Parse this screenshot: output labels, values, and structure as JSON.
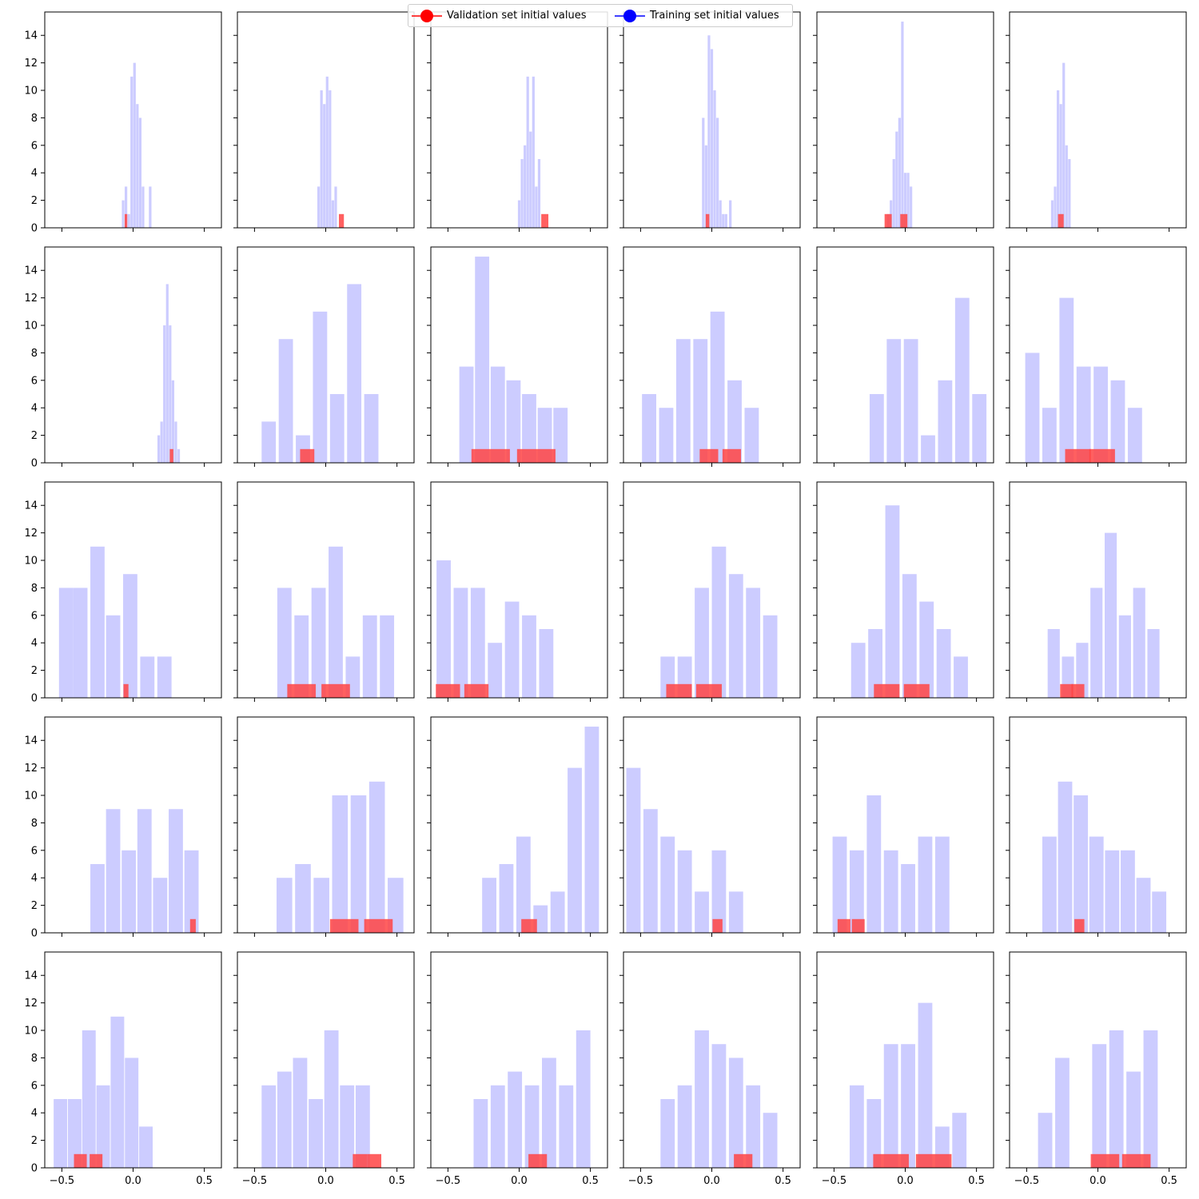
{
  "legend": {
    "entries": [
      {
        "label": "Validation set initial values",
        "color": "#ff0000"
      },
      {
        "label": "Training set initial values",
        "color": "#0000ff"
      }
    ]
  },
  "colors": {
    "training": "#ccccff",
    "validation": "#ff4444"
  },
  "chart_data": {
    "type": "bar",
    "layout_grid": [
      5,
      6
    ],
    "xlim": [
      -0.62,
      0.62
    ],
    "ylim": [
      0,
      15.7
    ],
    "xticks": [
      -0.5,
      0.0,
      0.5
    ],
    "xtick_labels": [
      "−0.5",
      "0.0",
      "0.5"
    ],
    "yticks": [
      0,
      2,
      4,
      6,
      8,
      10,
      12,
      14
    ],
    "ytick_labels": [
      "0",
      "2",
      "4",
      "6",
      "8",
      "10",
      "12",
      "14"
    ],
    "panels": [
      {
        "train_x": [
          -0.07,
          -0.05,
          -0.03,
          -0.01,
          0.01,
          0.03,
          0.05,
          0.07,
          0.09,
          0.12
        ],
        "train_y": [
          2,
          3,
          1,
          11,
          12,
          9,
          8,
          3,
          0,
          3
        ],
        "train_width": 0.018,
        "val_x": [
          -0.05
        ],
        "val_y": [
          1
        ],
        "val_width": 0.018
      },
      {
        "train_x": [
          -0.05,
          -0.03,
          -0.01,
          0.01,
          0.03,
          0.05,
          0.07,
          0.09,
          0.11,
          0.13
        ],
        "train_y": [
          3,
          10,
          9,
          11,
          10,
          2,
          3,
          0,
          0,
          0
        ],
        "train_width": 0.018,
        "val_x": [
          0.11
        ],
        "val_y": [
          1
        ],
        "val_width": 0.035
      },
      {
        "train_x": [
          0.0,
          0.02,
          0.04,
          0.06,
          0.08,
          0.1,
          0.12,
          0.14,
          0.16,
          0.18
        ],
        "train_y": [
          2,
          5,
          6,
          11,
          7,
          11,
          3,
          5,
          0,
          0
        ],
        "train_width": 0.018,
        "val_x": [
          0.18
        ],
        "val_y": [
          1
        ],
        "val_width": 0.05
      },
      {
        "train_x": [
          -0.06,
          -0.04,
          -0.02,
          0.0,
          0.02,
          0.04,
          0.06,
          0.08,
          0.1,
          0.13
        ],
        "train_y": [
          8,
          6,
          14,
          13,
          10,
          8,
          2,
          1,
          1,
          2
        ],
        "train_width": 0.018,
        "val_x": [
          -0.03
        ],
        "val_y": [
          1
        ],
        "val_width": 0.025
      },
      {
        "train_x": [
          -0.12,
          -0.1,
          -0.08,
          -0.06,
          -0.04,
          -0.02,
          0.0,
          0.02,
          0.04,
          0.06
        ],
        "train_y": [
          1,
          2,
          5,
          7,
          8,
          15,
          4,
          4,
          3,
          0
        ],
        "train_width": 0.018,
        "val_x": [
          -0.12,
          -0.01
        ],
        "val_y": [
          1,
          1
        ],
        "val_width": 0.05
      },
      {
        "train_x": [
          -0.32,
          -0.3,
          -0.28,
          -0.26,
          -0.24,
          -0.22,
          -0.2,
          -0.18,
          -0.16,
          -0.14
        ],
        "train_y": [
          2,
          3,
          10,
          9,
          12,
          6,
          5,
          0,
          0,
          0
        ],
        "train_width": 0.018,
        "val_x": [
          -0.26
        ],
        "val_y": [
          1
        ],
        "val_width": 0.04
      },
      {
        "train_x": [
          0.18,
          0.2,
          0.22,
          0.24,
          0.26,
          0.28,
          0.3,
          0.32,
          0.34,
          0.36
        ],
        "train_y": [
          2,
          3,
          10,
          13,
          10,
          6,
          3,
          1,
          0,
          0
        ],
        "train_width": 0.018,
        "val_x": [
          0.27
        ],
        "val_y": [
          1
        ],
        "val_width": 0.025
      },
      {
        "train_x": [
          -0.4,
          -0.28,
          -0.16,
          -0.04,
          0.08,
          0.2,
          0.32
        ],
        "train_y": [
          3,
          9,
          2,
          11,
          5,
          13,
          5
        ],
        "train_width": 0.1,
        "val_x": [
          -0.13
        ],
        "val_y": [
          1
        ],
        "val_width": 0.1
      },
      {
        "train_x": [
          -0.37,
          -0.26,
          -0.15,
          -0.04,
          0.07,
          0.18,
          0.29
        ],
        "train_y": [
          7,
          15,
          7,
          6,
          5,
          4,
          4
        ],
        "train_width": 0.1,
        "val_x": [
          -0.2,
          0.12
        ],
        "val_y": [
          1,
          1
        ],
        "val_width": 0.27
      },
      {
        "train_x": [
          -0.44,
          -0.32,
          -0.2,
          -0.08,
          0.04,
          0.16,
          0.28
        ],
        "train_y": [
          5,
          4,
          9,
          9,
          11,
          6,
          4
        ],
        "train_width": 0.1,
        "val_x": [
          -0.02,
          0.14
        ],
        "val_y": [
          1,
          1
        ],
        "val_width": 0.13
      },
      {
        "train_x": [
          -0.2,
          -0.08,
          0.04,
          0.16,
          0.28,
          0.4,
          0.52
        ],
        "train_y": [
          5,
          9,
          9,
          2,
          6,
          12,
          5
        ],
        "train_width": 0.1,
        "val_x": [],
        "val_y": [],
        "val_width": 0.1
      },
      {
        "train_x": [
          -0.46,
          -0.34,
          -0.22,
          -0.1,
          0.02,
          0.14,
          0.26,
          0.38
        ],
        "train_y": [
          8,
          4,
          12,
          7,
          7,
          6,
          4,
          0
        ],
        "train_width": 0.1,
        "val_x": [
          -0.14,
          0.03
        ],
        "val_y": [
          1,
          1
        ],
        "val_width": 0.18
      }
    ],
    "panels_more": [
      {
        "train_x": [
          -0.47,
          -0.37,
          -0.25,
          -0.14,
          -0.02,
          0.1,
          0.22
        ],
        "train_y": [
          8,
          8,
          11,
          6,
          9,
          3,
          3
        ],
        "train_width": 0.1,
        "val_x": [
          -0.05
        ],
        "val_y": [
          1
        ],
        "val_width": 0.035
      },
      {
        "train_x": [
          -0.29,
          -0.17,
          -0.05,
          0.07,
          0.19,
          0.31,
          0.43
        ],
        "train_y": [
          8,
          6,
          8,
          11,
          3,
          6,
          6
        ],
        "train_width": 0.1,
        "val_x": [
          -0.17,
          0.07
        ],
        "val_y": [
          1,
          1
        ],
        "val_width": 0.2
      },
      {
        "train_x": [
          -0.53,
          -0.41,
          -0.29,
          -0.17,
          -0.05,
          0.07,
          0.19
        ],
        "train_y": [
          10,
          8,
          8,
          4,
          7,
          6,
          5
        ],
        "train_width": 0.1,
        "val_x": [
          -0.5,
          -0.3
        ],
        "val_y": [
          1,
          1
        ],
        "val_width": 0.17
      },
      {
        "train_x": [
          -0.31,
          -0.19,
          -0.07,
          0.05,
          0.17,
          0.29,
          0.41
        ],
        "train_y": [
          3,
          3,
          8,
          11,
          9,
          8,
          6
        ],
        "train_width": 0.1,
        "val_x": [
          -0.23,
          -0.02
        ],
        "val_y": [
          1,
          1
        ],
        "val_width": 0.18
      },
      {
        "train_x": [
          -0.33,
          -0.21,
          -0.09,
          0.03,
          0.15,
          0.27,
          0.39
        ],
        "train_y": [
          4,
          5,
          14,
          9,
          7,
          5,
          3
        ],
        "train_width": 0.1,
        "val_x": [
          -0.13,
          0.08
        ],
        "val_y": [
          1,
          1
        ],
        "val_width": 0.18
      },
      {
        "train_x": [
          -0.31,
          -0.21,
          -0.11,
          -0.01,
          0.09,
          0.19,
          0.29,
          0.39
        ],
        "train_y": [
          5,
          3,
          4,
          8,
          12,
          6,
          8,
          5
        ],
        "train_width": 0.085,
        "val_x": [
          -0.22,
          -0.14
        ],
        "val_y": [
          1,
          1
        ],
        "val_width": 0.09
      },
      {
        "train_x": [
          -0.25,
          -0.14,
          -0.03,
          0.08,
          0.19,
          0.3,
          0.41
        ],
        "train_y": [
          5,
          9,
          6,
          9,
          4,
          9,
          6
        ],
        "train_width": 0.1,
        "val_x": [
          0.42
        ],
        "val_y": [
          1
        ],
        "val_width": 0.04
      },
      {
        "train_x": [
          -0.29,
          -0.16,
          -0.03,
          0.1,
          0.23,
          0.36,
          0.49
        ],
        "train_y": [
          4,
          5,
          4,
          10,
          10,
          11,
          4
        ],
        "train_width": 0.11,
        "val_x": [
          0.13,
          0.37
        ],
        "val_y": [
          1,
          1
        ],
        "val_width": 0.2
      },
      {
        "train_x": [
          -0.21,
          -0.09,
          0.03,
          0.15,
          0.27,
          0.39,
          0.51
        ],
        "train_y": [
          4,
          5,
          7,
          2,
          3,
          12,
          15
        ],
        "train_width": 0.1,
        "val_x": [
          0.07
        ],
        "val_y": [
          1
        ],
        "val_width": 0.11
      },
      {
        "train_x": [
          -0.55,
          -0.43,
          -0.31,
          -0.19,
          -0.07,
          0.05,
          0.17
        ],
        "train_y": [
          12,
          9,
          7,
          6,
          3,
          6,
          3
        ],
        "train_width": 0.1,
        "val_x": [
          0.04
        ],
        "val_y": [
          1
        ],
        "val_width": 0.07
      },
      {
        "train_x": [
          -0.46,
          -0.34,
          -0.22,
          -0.1,
          0.02,
          0.14,
          0.26
        ],
        "train_y": [
          7,
          6,
          10,
          6,
          5,
          7,
          7
        ],
        "train_width": 0.1,
        "val_x": [
          -0.43,
          -0.33
        ],
        "val_y": [
          1,
          1
        ],
        "val_width": 0.09
      },
      {
        "train_x": [
          -0.34,
          -0.23,
          -0.12,
          -0.01,
          0.1,
          0.21,
          0.32,
          0.43
        ],
        "train_y": [
          7,
          11,
          10,
          7,
          6,
          6,
          4,
          3
        ],
        "train_width": 0.1,
        "val_x": [
          -0.13
        ],
        "val_y": [
          1
        ],
        "val_width": 0.07
      }
    ],
    "panels_last": [
      {
        "train_x": [
          -0.51,
          -0.41,
          -0.31,
          -0.21,
          -0.11,
          -0.01,
          0.09,
          0.19
        ],
        "train_y": [
          5,
          5,
          10,
          6,
          11,
          8,
          3,
          0
        ],
        "train_width": 0.095,
        "val_x": [
          -0.37,
          -0.26
        ],
        "val_y": [
          1,
          1
        ],
        "val_width": 0.09
      },
      {
        "train_x": [
          -0.4,
          -0.29,
          -0.18,
          -0.07,
          0.04,
          0.15,
          0.26,
          0.37
        ],
        "train_y": [
          6,
          7,
          8,
          5,
          10,
          6,
          6,
          0
        ],
        "train_width": 0.1,
        "val_x": [
          0.24,
          0.34
        ],
        "val_y": [
          1,
          1
        ],
        "val_width": 0.1
      },
      {
        "train_x": [
          -0.27,
          -0.15,
          -0.03,
          0.09,
          0.21,
          0.33,
          0.45
        ],
        "train_y": [
          5,
          6,
          7,
          6,
          8,
          6,
          10
        ],
        "train_width": 0.1,
        "val_x": [
          0.13
        ],
        "val_y": [
          1
        ],
        "val_width": 0.13
      },
      {
        "train_x": [
          -0.31,
          -0.19,
          -0.07,
          0.05,
          0.17,
          0.29,
          0.41,
          0.53
        ],
        "train_y": [
          5,
          6,
          10,
          9,
          8,
          6,
          4,
          0
        ],
        "train_width": 0.1,
        "val_x": [
          0.22
        ],
        "val_y": [
          1
        ],
        "val_width": 0.13
      },
      {
        "train_x": [
          -0.34,
          -0.22,
          -0.1,
          0.02,
          0.14,
          0.26,
          0.38
        ],
        "train_y": [
          6,
          5,
          9,
          9,
          12,
          3,
          4
        ],
        "train_width": 0.1,
        "val_x": [
          -0.1,
          0.2
        ],
        "val_y": [
          1,
          1
        ],
        "val_width": 0.25
      },
      {
        "train_x": [
          -0.37,
          -0.25,
          -0.13,
          0.01,
          0.13,
          0.25,
          0.37
        ],
        "train_y": [
          4,
          8,
          0,
          9,
          10,
          7,
          10
        ],
        "train_width": 0.1,
        "val_x": [
          0.05,
          0.27
        ],
        "val_y": [
          1,
          1
        ],
        "val_width": 0.2
      }
    ]
  }
}
